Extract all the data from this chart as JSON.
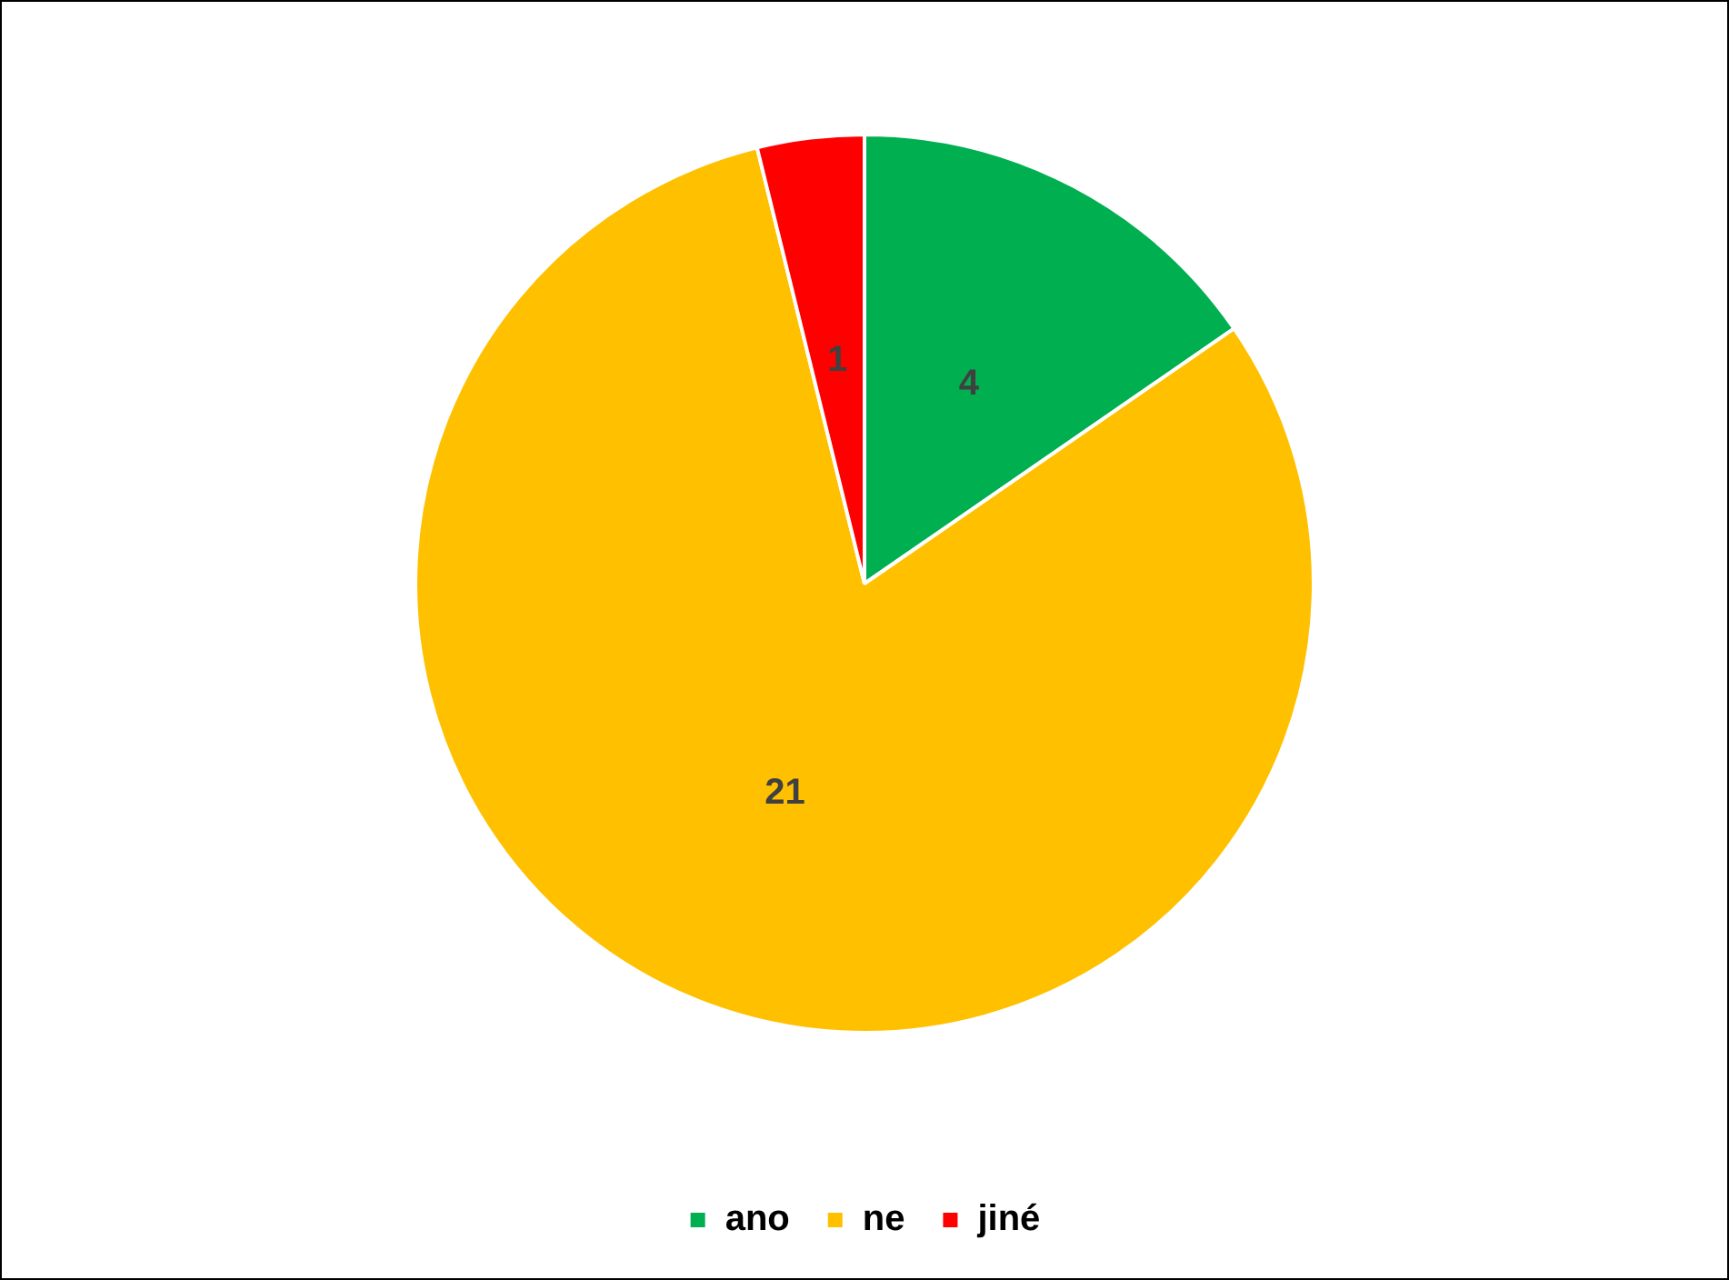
{
  "chart_data": {
    "type": "pie",
    "categories": [
      "ano",
      "ne",
      "jiné"
    ],
    "values": [
      4,
      21,
      1
    ],
    "colors": [
      "#00b050",
      "#ffc000",
      "#ff0000"
    ],
    "data_labels": true,
    "legend": "bottom"
  }
}
